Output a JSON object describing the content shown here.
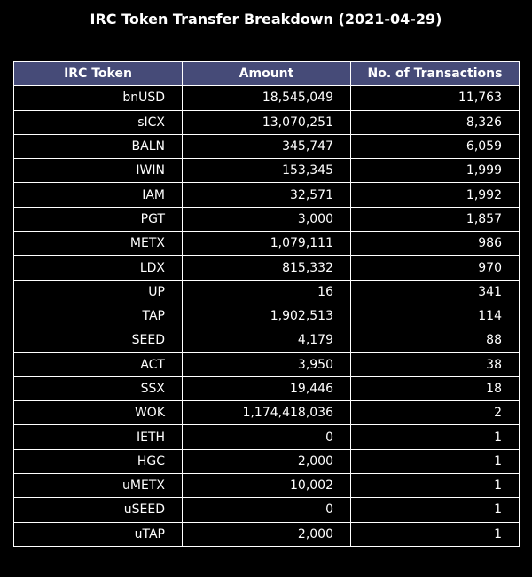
{
  "title": "IRC Token Transfer Breakdown (2021-04-29)",
  "header_color": "#464b78",
  "chart_data": {
    "type": "table",
    "title": "IRC Token Transfer Breakdown (2021-04-29)",
    "columns": [
      "IRC Token",
      "Amount",
      "No. of Transactions"
    ],
    "rows": [
      [
        "bnUSD",
        "18,545,049",
        "11,763"
      ],
      [
        "sICX",
        "13,070,251",
        "8,326"
      ],
      [
        "BALN",
        "345,747",
        "6,059"
      ],
      [
        "IWIN",
        "153,345",
        "1,999"
      ],
      [
        "IAM",
        "32,571",
        "1,992"
      ],
      [
        "PGT",
        "3,000",
        "1,857"
      ],
      [
        "METX",
        "1,079,111",
        "986"
      ],
      [
        "LDX",
        "815,332",
        "970"
      ],
      [
        "UP",
        "16",
        "341"
      ],
      [
        "TAP",
        "1,902,513",
        "114"
      ],
      [
        "SEED",
        "4,179",
        "88"
      ],
      [
        "ACT",
        "3,950",
        "38"
      ],
      [
        "SSX",
        "19,446",
        "18"
      ],
      [
        "WOK",
        "1,174,418,036",
        "2"
      ],
      [
        "IETH",
        "0",
        "1"
      ],
      [
        "HGC",
        "2,000",
        "1"
      ],
      [
        "uMETX",
        "10,002",
        "1"
      ],
      [
        "uSEED",
        "0",
        "1"
      ],
      [
        "uTAP",
        "2,000",
        "1"
      ]
    ]
  }
}
